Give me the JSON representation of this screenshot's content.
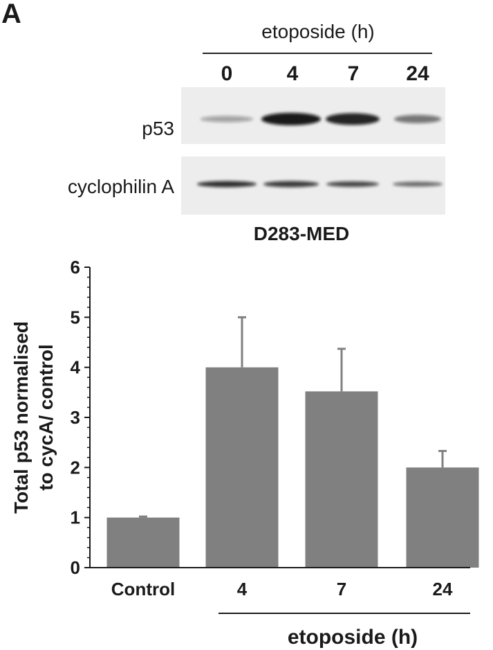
{
  "panel_label": "A",
  "blot": {
    "header": "etoposide (h)",
    "lanes": [
      "0",
      "4",
      "7",
      "24"
    ],
    "bands": [
      {
        "label": "p53",
        "intensities": [
          0.35,
          0.95,
          0.9,
          0.55
        ]
      },
      {
        "label": "cyclophilin A",
        "intensities": [
          0.85,
          0.8,
          0.75,
          0.6
        ]
      }
    ],
    "cell_line": "D283-MED"
  },
  "colors": {
    "bar": "#808080",
    "axis": "#1a1a1a",
    "blot_bg": "#ededed",
    "band": "#111111"
  },
  "chart_data": {
    "type": "bar",
    "categories": [
      "Control",
      "4",
      "7",
      "24"
    ],
    "values": [
      1.0,
      4.0,
      3.52,
      2.0
    ],
    "errors": [
      0.02,
      1.0,
      0.85,
      0.33
    ],
    "ylabel_line1": "Total p53 normalised",
    "ylabel_line2": "to cycA/ control",
    "xgroup_label": "etoposide (h)",
    "ylim": [
      0,
      6
    ],
    "yticks": [
      "0",
      "1",
      "2",
      "3",
      "4",
      "5",
      "6"
    ],
    "grid": false
  }
}
